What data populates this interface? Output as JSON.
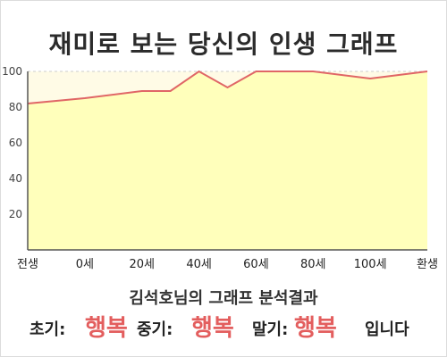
{
  "title": "재미로 보는 당신의 인생 그래프",
  "subtitle": "김석호님의 그래프 분석결과",
  "result": {
    "early_label": "초기:",
    "early_value": "행복",
    "middle_label": "중기:",
    "middle_value": "행복",
    "late_label": "말기:",
    "late_value": "행복",
    "suffix": "입니다"
  },
  "colors": {
    "fill": "#ffffbb",
    "plot_bg": "#fffbe6",
    "line": "#e06666",
    "grid": "#cccccc",
    "accent_text": "#e35e5e"
  },
  "chart_data": {
    "type": "area",
    "title": "재미로 보는 당신의 인생 그래프",
    "xlabel": "",
    "ylabel": "",
    "x_tick_labels": [
      "전생",
      "0세",
      "20세",
      "40세",
      "60세",
      "80세",
      "100세",
      "환생"
    ],
    "y_ticks": [
      20,
      40,
      60,
      80,
      100
    ],
    "ylim": [
      0,
      100
    ],
    "grid": true,
    "series": [
      {
        "x": [
          -20,
          0,
          20,
          30,
          40,
          50,
          60,
          80,
          100,
          120
        ],
        "values": [
          82,
          85,
          89,
          89,
          100,
          91,
          100,
          100,
          96,
          100
        ]
      }
    ],
    "x_domain": [
      -20,
      120
    ]
  }
}
